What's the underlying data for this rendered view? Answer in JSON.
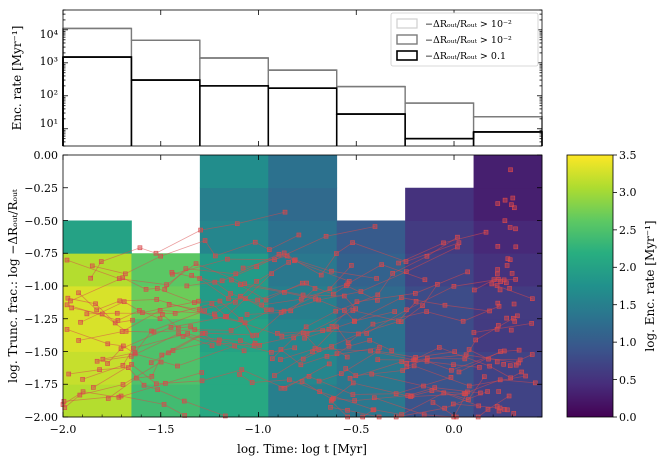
{
  "top_panel": {
    "ylabel": "Enc. rate [Myr⁻¹]",
    "ytick_labels": [
      "10¹",
      "10²",
      "10³",
      "10⁴"
    ],
    "legend": [
      "−ΔRₒᵤₜ/Rₒᵤₜ > 10⁻²",
      "−ΔRₒᵤₜ/Rₒᵤₜ > 10⁻²",
      "−ΔRₒᵤₜ/Rₒᵤₜ > 0.1"
    ]
  },
  "main_panel": {
    "xlabel": "log. Time: log t [Myr]",
    "ylabel": "log. Trunc. frac.: log −ΔRₒᵤₜ/Rₒᵤₜ",
    "xtick_labels": [
      "−2.0",
      "−1.5",
      "−1.0",
      "−0.5",
      "0.0"
    ],
    "ytick_labels": [
      "0.00",
      "−0.25",
      "−0.50",
      "−0.75",
      "−1.00",
      "−1.25",
      "−1.50",
      "−1.75",
      "−2.00"
    ]
  },
  "colorbar": {
    "label": "log. Enc. rate [Myr⁻¹]",
    "tick_labels": [
      "0.0",
      "0.5",
      "1.0",
      "1.5",
      "2.0",
      "2.5",
      "3.0",
      "3.5"
    ]
  },
  "colors": {
    "track": "#d9484b",
    "hist_light": "#cfcfcf",
    "hist_mid": "#7a7a7a",
    "hist_dark": "#000000"
  },
  "chart_data": [
    {
      "type": "bar",
      "yscale": "log",
      "bin_edges": [
        -2.0,
        -1.65,
        -1.3,
        -0.95,
        -0.6,
        -0.25,
        0.1,
        0.45
      ],
      "xlim": [
        -2.0,
        0.45
      ],
      "ylim": [
        3,
        40000
      ],
      "legend_placement": "top-right",
      "series": [
        {
          "name": "−ΔRₒᵤₜ/Rₒᵤₜ > 10⁻²",
          "values": [
            11000,
            4800,
            1400,
            600,
            190,
            60,
            23
          ]
        },
        {
          "name": "−ΔRₒᵤₜ/Rₒᵤₜ > 10⁻²",
          "values": [
            11000,
            4800,
            1400,
            600,
            190,
            60,
            23
          ]
        },
        {
          "name": "−ΔRₒᵤₜ/Rₒᵤₜ > 0.1",
          "values": [
            1500,
            300,
            200,
            170,
            28,
            5,
            8
          ]
        }
      ]
    },
    {
      "type": "heatmap",
      "x_edges": [
        -2.0,
        -1.65,
        -1.3,
        -0.95,
        -0.6,
        -0.25,
        0.1,
        0.45
      ],
      "y_edges": [
        -2.0,
        -1.75,
        -1.5,
        -1.25,
        -1.0,
        -0.75,
        -0.5,
        -0.25,
        0.0
      ],
      "xlim": [
        -2.0,
        0.45
      ],
      "ylim": [
        -2.0,
        0.0
      ],
      "colormap": "viridis",
      "clim": [
        0.0,
        3.5
      ],
      "values": [
        [
          3.1,
          2.4,
          2.1,
          1.5,
          1.4,
          0.9,
          0.7
        ],
        [
          3.2,
          2.5,
          2.1,
          1.6,
          1.4,
          0.9,
          0.7
        ],
        [
          3.3,
          2.5,
          2.0,
          1.6,
          1.3,
          0.8,
          0.6
        ],
        [
          3.3,
          2.7,
          1.9,
          1.5,
          1.2,
          0.8,
          0.6
        ],
        [
          3.1,
          2.6,
          1.9,
          1.4,
          1.1,
          0.7,
          0.5
        ],
        [
          2.0,
          null,
          1.6,
          1.3,
          1.0,
          0.6,
          0.4
        ],
        [
          null,
          null,
          1.5,
          1.2,
          null,
          0.5,
          0.3
        ],
        [
          null,
          null,
          1.7,
          1.3,
          null,
          null,
          0.3
        ]
      ]
    }
  ]
}
